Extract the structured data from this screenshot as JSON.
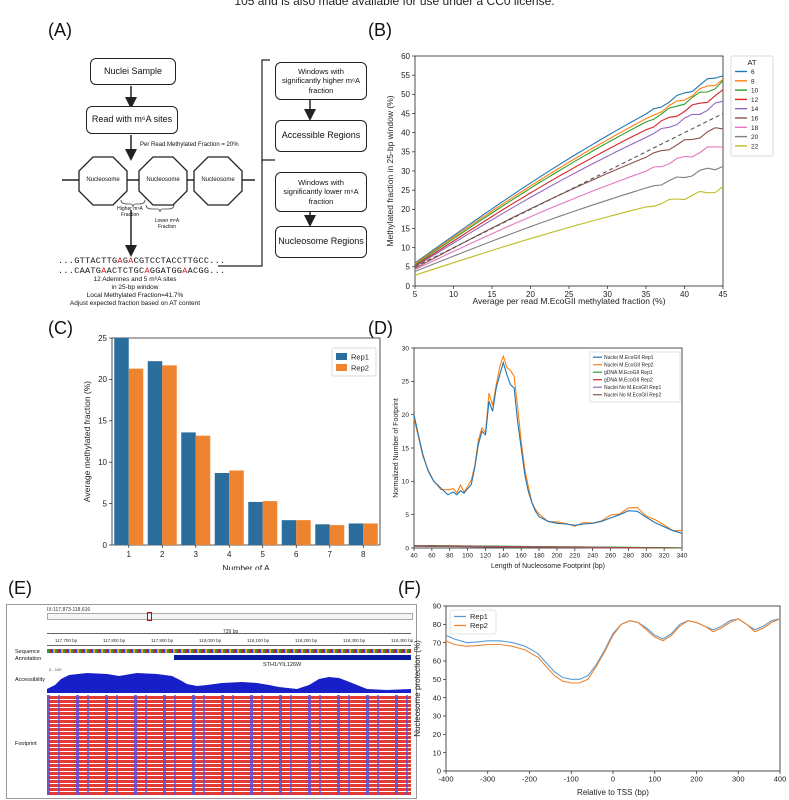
{
  "header_text": "105 and is also made available for use under a CC0 license.",
  "panels": {
    "a": "(A)",
    "b": "(B)",
    "c": "(C)",
    "d": "(D)",
    "e": "(E)",
    "f": "(F)"
  },
  "flowchart": {
    "nuclei_sample": "Nuclei Sample",
    "read_m6a": "Read with m⁶A sites",
    "per_read": "Per Read Methylated Fraction = 20%",
    "nucleosome": "Nucleosome",
    "higher_label": "Higher m⁶A Fraction",
    "lower_label": "Lower m⁶A Fraction",
    "seq1_a": "...GTTACTTG",
    "seq1_b": "A",
    "seq1_c": "G",
    "seq1_d": "A",
    "seq1_e": "CGTCCTACCTTGCC...",
    "seq2_a": "...CAATG",
    "seq2_b": "A",
    "seq2_c": "ACTCTGC",
    "seq2_d": "A",
    "seq2_e": "GGATGG",
    "seq2_f": "A",
    "seq2_g": "ACGG...",
    "note1": "12 Adenines and 5 m⁶A sites",
    "note2": "in 25-bp window",
    "note3": "Local Methylated Fraction=41.7%",
    "note4": "Adjust expected fraction based on AT content",
    "box_higher": "Windows with significantly higher m⁶A fraction",
    "box_accessible": "Accessible Regions",
    "box_lower": "Windows with significantly lower m⁶A fraction",
    "box_nucleosome_regions": "Nucleosome Regions"
  },
  "chart_b": {
    "type": "line",
    "ylabel": "Methylated fraction in 25-bp window (%)",
    "xlabel": "Average per read M.EcoGII methylated fraction (%)",
    "xlim": [
      5,
      45
    ],
    "ylim": [
      0,
      60
    ],
    "xticks": [
      5,
      10,
      15,
      20,
      25,
      30,
      35,
      40,
      45
    ],
    "yticks": [
      0,
      5,
      10,
      15,
      20,
      25,
      30,
      35,
      40,
      45,
      50,
      55,
      60
    ],
    "legend_title": "AT",
    "series": [
      {
        "name": "6",
        "color": "#1f77b4",
        "start": 6.0,
        "end": 55.5
      },
      {
        "name": "8",
        "color": "#ff7f0e",
        "start": 5.8,
        "end": 54.0
      },
      {
        "name": "10",
        "color": "#2ca02c",
        "start": 5.5,
        "end": 53.0
      },
      {
        "name": "12",
        "color": "#d62728",
        "start": 5.2,
        "end": 50.5
      },
      {
        "name": "14",
        "color": "#9467bd",
        "start": 5.0,
        "end": 48.0
      },
      {
        "name": "16",
        "color": "#8c564b",
        "start": 4.6,
        "end": 41.5
      },
      {
        "name": "18",
        "color": "#e377c2",
        "start": 4.3,
        "end": 37.0
      },
      {
        "name": "20",
        "color": "#7f7f7f",
        "start": 3.8,
        "end": 31.5
      },
      {
        "name": "22",
        "color": "#bcbd22",
        "start": 2.8,
        "end": 25.5
      }
    ],
    "diagonal": [
      5,
      45
    ]
  },
  "chart_c": {
    "type": "bar",
    "ylabel": "Average methylated fraction (%)",
    "xlabel": "Number of A",
    "categories": [
      "1",
      "2",
      "3",
      "4",
      "5",
      "6",
      "7",
      "8"
    ],
    "ylim": [
      0,
      25
    ],
    "yticks": [
      0,
      5,
      10,
      15,
      20,
      25
    ],
    "series": [
      {
        "name": "Rep1",
        "color": "#2b6e9e",
        "values": [
          25.0,
          22.2,
          13.6,
          8.7,
          5.2,
          3.0,
          2.5,
          2.6
        ]
      },
      {
        "name": "Rep2",
        "color": "#ee8430",
        "values": [
          21.3,
          21.7,
          13.2,
          9.0,
          5.3,
          3.0,
          2.4,
          2.6
        ]
      }
    ]
  },
  "chart_d": {
    "type": "line",
    "ylabel": "Normalized Number of Footprint",
    "xlabel": "Length of Nucleosome Footprint (bp)",
    "xlim": [
      40,
      340
    ],
    "ylim": [
      0,
      30
    ],
    "xticks": [
      40,
      60,
      80,
      100,
      120,
      140,
      160,
      180,
      200,
      220,
      240,
      260,
      280,
      300,
      320,
      340
    ],
    "yticks": [
      0,
      5,
      10,
      15,
      20,
      25,
      30
    ],
    "series": [
      {
        "name": "Nuclei M.EcoGII Rep1",
        "color": "#1f77b4"
      },
      {
        "name": "Nuclei M.EcoGII Rep2",
        "color": "#ff7f0e"
      },
      {
        "name": "gDNA M.EcoGII Rep1",
        "color": "#2ca02c"
      },
      {
        "name": "gDNA M.EcoGII Rep2",
        "color": "#d62728"
      },
      {
        "name": "Nuclei No M.EcoGII Rep1",
        "color": "#9467bd"
      },
      {
        "name": "Nuclei No M.EcoGII Rep2",
        "color": "#8c564b"
      }
    ],
    "profile_x": [
      40,
      44,
      50,
      56,
      62,
      70,
      78,
      84,
      88,
      92,
      96,
      100,
      104,
      108,
      112,
      116,
      120,
      124,
      128,
      132,
      136,
      140,
      144,
      148,
      152,
      156,
      160,
      164,
      168,
      172,
      176,
      180,
      190,
      200,
      210,
      220,
      230,
      240,
      250,
      260,
      270,
      280,
      290,
      300,
      310,
      320,
      330,
      340
    ],
    "profile_y1": [
      20,
      17.5,
      14,
      11.5,
      10,
      9,
      8,
      8.4,
      8,
      8.6,
      8.2,
      8.9,
      9.5,
      12,
      15.5,
      17.5,
      17,
      22,
      20.5,
      24,
      26,
      27.8,
      26,
      24.5,
      24,
      19,
      15,
      11,
      8.5,
      6.8,
      5.5,
      4.7,
      4,
      3.7,
      3.6,
      3.4,
      3.6,
      3.7,
      4.0,
      4.5,
      5.0,
      5.6,
      5.5,
      4.6,
      3.8,
      3.2,
      2.6,
      2.2
    ],
    "profile_y2": [
      19.5,
      17,
      14,
      11.5,
      10,
      9,
      8.5,
      9,
      8.4,
      9.2,
      8.6,
      9.2,
      10,
      12.5,
      16,
      18,
      17.5,
      23,
      21.5,
      24.5,
      27,
      29,
      27,
      26.5,
      26,
      21,
      16,
      12,
      9,
      7,
      5.8,
      4.9,
      4.2,
      3.8,
      3.6,
      3.5,
      3.6,
      3.8,
      4.2,
      4.7,
      5.3,
      6.0,
      5.9,
      5.0,
      4.1,
      3.4,
      2.8,
      2.4
    ]
  },
  "igv": {
    "locus": "IX:117,873-118,616",
    "length": "739 bp",
    "ruler": [
      "117,700 bp",
      "117,800 bp",
      "117,900 bp",
      "118,000 bp",
      "118,100 bp",
      "118,200 bp",
      "118,300 bp",
      "118,400 bp"
    ],
    "sequence_label": "Sequence",
    "annotation_label": "Annotation",
    "accessibility_label": "Accessibility",
    "footprint_label": "Footprint",
    "gene": "STH1/YIL126W",
    "scale": "0 - 100"
  },
  "chart_f": {
    "type": "line",
    "ylabel": "Nucleosome protection (%)",
    "xlabel": "Relative to TSS (bp)",
    "xlim": [
      -400,
      400
    ],
    "ylim": [
      0,
      90
    ],
    "xticks": [
      -400,
      -300,
      -200,
      -100,
      0,
      100,
      200,
      300,
      400
    ],
    "yticks": [
      0,
      10,
      20,
      30,
      40,
      50,
      60,
      70,
      80,
      90
    ],
    "x": [
      -400,
      -380,
      -350,
      -320,
      -300,
      -270,
      -240,
      -210,
      -180,
      -160,
      -140,
      -120,
      -100,
      -80,
      -60,
      -40,
      -20,
      0,
      20,
      40,
      60,
      80,
      100,
      120,
      140,
      160,
      180,
      200,
      220,
      240,
      260,
      280,
      300,
      320,
      340,
      360,
      380,
      400
    ],
    "series": [
      {
        "name": "Rep1",
        "color": "#5b9bd5",
        "values": [
          74,
          72,
          70,
          70.5,
          71,
          71,
          70,
          68,
          64,
          59,
          54,
          51,
          50,
          50,
          52,
          58,
          66,
          75,
          80,
          82,
          81,
          78,
          74,
          72,
          75,
          80,
          82,
          81,
          79,
          77,
          79,
          82,
          83,
          80,
          77,
          79,
          82,
          83
        ]
      },
      {
        "name": "Rep2",
        "color": "#ee8430",
        "values": [
          71,
          69,
          68,
          68.5,
          69,
          69,
          68,
          66,
          62,
          57,
          52,
          49,
          48,
          48,
          50,
          57,
          65,
          74,
          80,
          82,
          81,
          77,
          73,
          71,
          74,
          79,
          82,
          81,
          79,
          76,
          78,
          81,
          83,
          80,
          76,
          78,
          81,
          83
        ]
      }
    ]
  }
}
